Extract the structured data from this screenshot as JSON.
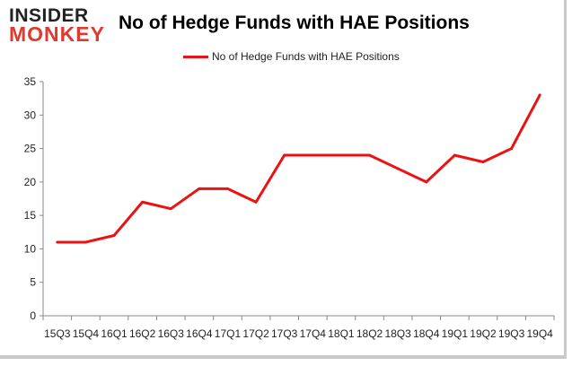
{
  "brand": {
    "logo_top": "INSIDER",
    "logo_bottom": "MONKEY",
    "logo_colors": {
      "top": "#222222",
      "bottom": "#e0392d"
    }
  },
  "chart_data": {
    "type": "line",
    "title": "No of Hedge Funds with HAE Positions",
    "xlabel": "",
    "ylabel": "",
    "categories": [
      "15Q3",
      "15Q4",
      "16Q1",
      "16Q2",
      "16Q3",
      "16Q4",
      "17Q1",
      "17Q2",
      "17Q3",
      "17Q4",
      "18Q1",
      "18Q2",
      "18Q3",
      "18Q4",
      "19Q1",
      "19Q2",
      "19Q3",
      "19Q4"
    ],
    "series": [
      {
        "name": "No of Hedge Funds with HAE Positions",
        "color": "#ee1111",
        "values": [
          11,
          11,
          12,
          17,
          16,
          19,
          19,
          17,
          24,
          24,
          24,
          24,
          22,
          20,
          24,
          23,
          25,
          33
        ]
      }
    ],
    "ylim": [
      0,
      35
    ],
    "yticks": [
      0,
      5,
      10,
      15,
      20,
      25,
      30,
      35
    ],
    "grid": false,
    "legend_position": "top-center"
  }
}
